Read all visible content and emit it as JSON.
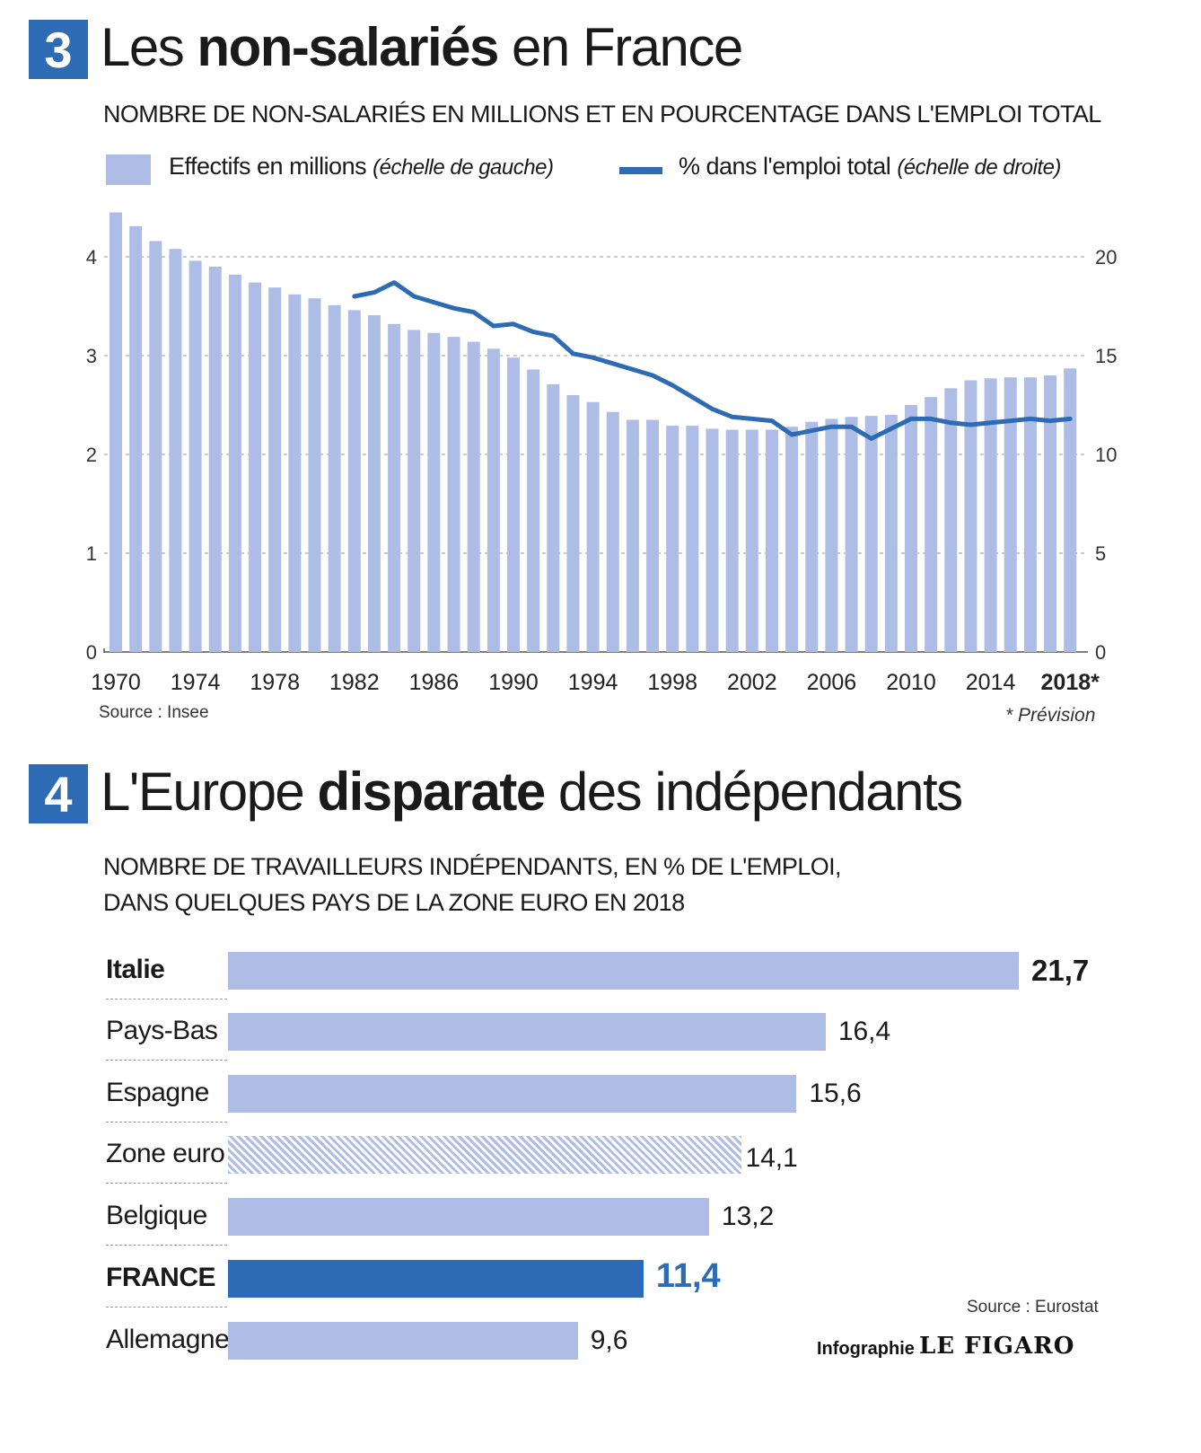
{
  "section3": {
    "number": "3",
    "title_normal_1": "Les ",
    "title_bold": "non-salariés",
    "title_normal_2": " en France",
    "subtitle": "NOMBRE DE NON-SALARIÉS EN MILLIONS ET EN POURCENTAGE DANS L'EMPLOI TOTAL",
    "legend_bars_label": "Effectifs en millions",
    "legend_bars_note": "(échelle de gauche)",
    "legend_line_label": "% dans l'emploi total",
    "legend_line_note": "(échelle de droite)",
    "source": "Source : Insee",
    "footnote": "* Prévision"
  },
  "section4": {
    "number": "4",
    "title_normal_1": "L'Europe ",
    "title_bold": "disparate",
    "title_normal_2": " des indépendants",
    "subtitle_line1": "NOMBRE DE TRAVAILLEURS INDÉPENDANTS, EN % DE L'EMPLOI,",
    "subtitle_line2": "DANS QUELQUES PAYS DE LA ZONE EURO EN 2018",
    "source": "Source : Eurostat",
    "credit_prefix": "Infographie",
    "credit_brand": "LE FIGARO"
  },
  "colors": {
    "accent": "#2d6bb5",
    "bar": "#aebde6",
    "grid": "#888888"
  },
  "chart_data": [
    {
      "type": "bar+line",
      "title": "NOMBRE DE NON-SALARIÉS EN MILLIONS ET EN POURCENTAGE DANS L'EMPLOI TOTAL",
      "x_tick_labels": [
        "1970",
        "1974",
        "1978",
        "1982",
        "1986",
        "1990",
        "1994",
        "1998",
        "2002",
        "2006",
        "2010",
        "2014",
        "2018*"
      ],
      "y_left": {
        "ticks": [
          0,
          1,
          2,
          3,
          4
        ],
        "ylim": [
          0,
          4.45
        ]
      },
      "y_right": {
        "ticks": [
          0,
          5,
          10,
          15,
          20
        ],
        "ylim": [
          0,
          22.25
        ]
      },
      "grid": "dashed horizontal",
      "legend_position": "top",
      "series": [
        {
          "name": "Effectifs en millions (échelle de gauche)",
          "type": "bar",
          "axis": "left",
          "x": [
            1970,
            1971,
            1972,
            1973,
            1974,
            1975,
            1976,
            1977,
            1978,
            1979,
            1980,
            1981,
            1982,
            1983,
            1984,
            1985,
            1986,
            1987,
            1988,
            1989,
            1990,
            1991,
            1992,
            1993,
            1994,
            1995,
            1996,
            1997,
            1998,
            1999,
            2000,
            2001,
            2002,
            2003,
            2004,
            2005,
            2006,
            2007,
            2008,
            2009,
            2010,
            2011,
            2012,
            2013,
            2014,
            2015,
            2016,
            2017,
            2018
          ],
          "values": [
            4.45,
            4.31,
            4.16,
            4.08,
            3.96,
            3.9,
            3.82,
            3.74,
            3.69,
            3.62,
            3.58,
            3.51,
            3.46,
            3.41,
            3.32,
            3.26,
            3.23,
            3.19,
            3.14,
            3.07,
            2.98,
            2.86,
            2.71,
            2.6,
            2.53,
            2.43,
            2.35,
            2.35,
            2.29,
            2.29,
            2.26,
            2.25,
            2.25,
            2.25,
            2.28,
            2.33,
            2.36,
            2.38,
            2.39,
            2.4,
            2.5,
            2.58,
            2.67,
            2.75,
            2.77,
            2.78,
            2.78,
            2.8,
            2.87
          ]
        },
        {
          "name": "% dans l'emploi total (échelle de droite)",
          "type": "line",
          "axis": "right",
          "x": [
            1982,
            1983,
            1984,
            1985,
            1986,
            1987,
            1988,
            1989,
            1990,
            1991,
            1992,
            1993,
            1994,
            1995,
            1996,
            1997,
            1998,
            1999,
            2000,
            2001,
            2002,
            2003,
            2004,
            2005,
            2006,
            2007,
            2008,
            2009,
            2010,
            2011,
            2012,
            2013,
            2014,
            2015,
            2016,
            2017,
            2018
          ],
          "values": [
            18.0,
            18.2,
            18.7,
            18.0,
            17.7,
            17.4,
            17.2,
            16.5,
            16.6,
            16.2,
            16.0,
            15.1,
            14.9,
            14.6,
            14.3,
            14.0,
            13.5,
            12.9,
            12.3,
            11.9,
            11.8,
            11.7,
            11.0,
            11.2,
            11.4,
            11.4,
            10.8,
            11.3,
            11.8,
            11.8,
            11.6,
            11.5,
            11.6,
            11.7,
            11.8,
            11.7,
            11.8
          ]
        }
      ]
    },
    {
      "type": "bar",
      "orientation": "horizontal",
      "title": "NOMBRE DE TRAVAILLEURS INDÉPENDANTS, EN % DE L'EMPLOI, DANS QUELQUES PAYS DE LA ZONE EURO EN 2018",
      "categories": [
        "Italie",
        "Pays-Bas",
        "Espagne",
        "Zone euro",
        "Belgique",
        "FRANCE",
        "Allemagne"
      ],
      "values": [
        21.7,
        16.4,
        15.6,
        14.1,
        13.2,
        11.4,
        9.6
      ],
      "value_labels": [
        "21,7",
        "16,4",
        "15,6",
        "14,1",
        "13,2",
        "11,4",
        "9,6"
      ],
      "styles": [
        "bold-label",
        "normal",
        "normal",
        "hatched",
        "normal",
        "highlight",
        "normal"
      ]
    }
  ]
}
